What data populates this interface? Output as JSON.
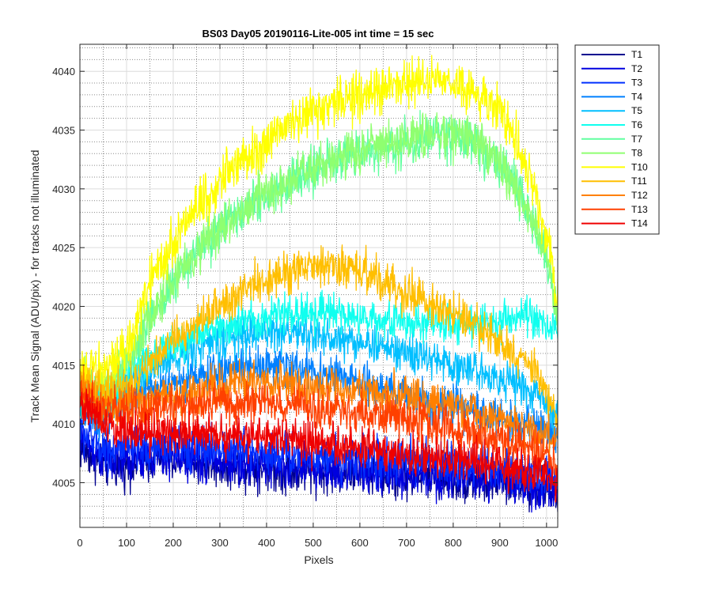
{
  "chart_data": {
    "type": "line",
    "title": "BS03 Day05 20190116-Lite-005 int time = 15 sec",
    "xlabel": "Pixels",
    "ylabel": "Track Mean Signal (ADU/pix) - for tracks not illuminated",
    "xlim": [
      0,
      1024
    ],
    "ylim": [
      4001.2,
      4042.3
    ],
    "x_ticks": [
      0,
      100,
      200,
      300,
      400,
      500,
      600,
      700,
      800,
      900,
      1000
    ],
    "y_ticks": [
      4005,
      4010,
      4015,
      4020,
      4025,
      4030,
      4035,
      4040
    ],
    "y_minor_step": 1,
    "grid": "major solid, minor dotted",
    "legend_position": "outside-top-right",
    "x": [
      0,
      50,
      100,
      150,
      200,
      250,
      300,
      350,
      400,
      450,
      500,
      550,
      600,
      650,
      700,
      750,
      800,
      850,
      900,
      950,
      1000,
      1024
    ],
    "series": [
      {
        "name": "T1",
        "color": "#00008f",
        "values": [
          4008.0,
          4006.5,
          4006.5,
          4007.0,
          4007.0,
          4006.8,
          4006.5,
          4006.5,
          4006.3,
          4006.0,
          4006.0,
          4006.0,
          4005.8,
          4005.6,
          4005.5,
          4005.5,
          4005.3,
          4005.2,
          4005.0,
          4005.0,
          4004.5,
          4004.0
        ],
        "noise": 1.2
      },
      {
        "name": "T2",
        "color": "#0000df",
        "values": [
          4009.0,
          4007.0,
          4006.8,
          4007.2,
          4007.2,
          4007.0,
          4006.8,
          4006.6,
          4006.5,
          4006.2,
          4006.2,
          4006.0,
          4006.0,
          4005.8,
          4005.7,
          4005.6,
          4005.5,
          4005.4,
          4005.2,
          4005.0,
          4004.5,
          4004.0
        ],
        "noise": 1.2
      },
      {
        "name": "T3",
        "color": "#0030ff",
        "values": [
          4009.5,
          4008.0,
          4007.8,
          4008.0,
          4008.2,
          4008.0,
          4008.0,
          4007.8,
          4007.6,
          4007.5,
          4007.4,
          4007.2,
          4007.0,
          4007.0,
          4006.8,
          4006.8,
          4006.6,
          4006.5,
          4006.3,
          4006.0,
          4005.5,
          4005.0
        ],
        "noise": 1.2
      },
      {
        "name": "T4",
        "color": "#0080ff",
        "values": [
          4011.0,
          4010.0,
          4012.5,
          4013.0,
          4013.5,
          4014.0,
          4014.5,
          4015.0,
          4015.0,
          4014.8,
          4014.5,
          4014.0,
          4013.5,
          4013.0,
          4012.5,
          4012.0,
          4011.5,
          4011.0,
          4010.5,
          4010.0,
          4009.5,
          4009.0
        ],
        "noise": 1.0
      },
      {
        "name": "T5",
        "color": "#00bfff",
        "values": [
          4012.0,
          4011.0,
          4013.5,
          4014.5,
          4015.5,
          4016.5,
          4017.0,
          4017.5,
          4017.8,
          4017.8,
          4017.5,
          4017.2,
          4017.0,
          4016.5,
          4016.0,
          4015.5,
          4015.0,
          4014.5,
          4014.0,
          4013.0,
          4012.0,
          4010.5
        ],
        "noise": 1.0
      },
      {
        "name": "T6",
        "color": "#10ffef",
        "values": [
          4012.5,
          4011.5,
          4014.5,
          4015.8,
          4016.8,
          4017.5,
          4018.2,
          4018.8,
          4019.2,
          4019.5,
          4019.5,
          4019.3,
          4019.0,
          4018.8,
          4018.6,
          4018.5,
          4018.5,
          4018.6,
          4018.8,
          4019.0,
          4018.5,
          4018.0
        ],
        "noise": 1.0
      },
      {
        "name": "T7",
        "color": "#60ff9f",
        "values": [
          4013.0,
          4012.5,
          4015.0,
          4019.0,
          4022.0,
          4024.5,
          4026.5,
          4028.0,
          4029.5,
          4030.5,
          4031.5,
          4032.5,
          4033.0,
          4033.5,
          4034.0,
          4034.5,
          4034.5,
          4034.0,
          4032.0,
          4029.0,
          4024.0,
          4019.0
        ],
        "noise": 1.2
      },
      {
        "name": "T8",
        "color": "#8fff70",
        "values": [
          4013.5,
          4013.0,
          4015.2,
          4019.2,
          4022.2,
          4024.7,
          4026.7,
          4028.2,
          4029.7,
          4030.7,
          4031.7,
          4032.7,
          4033.2,
          4033.7,
          4034.2,
          4034.7,
          4034.7,
          4034.2,
          4032.2,
          4029.2,
          4024.2,
          4019.2
        ],
        "noise": 1.2
      },
      {
        "name": "T10",
        "color": "#ffff00",
        "values": [
          4014.5,
          4014.5,
          4016.0,
          4022.0,
          4025.5,
          4028.5,
          4030.5,
          4032.5,
          4034.0,
          4035.5,
          4036.5,
          4037.5,
          4038.0,
          4038.5,
          4038.8,
          4039.0,
          4038.8,
          4038.0,
          4036.5,
          4033.0,
          4027.0,
          4020.0
        ],
        "noise": 1.3
      },
      {
        "name": "T11",
        "color": "#ffbf00",
        "values": [
          4014.0,
          4012.5,
          4013.0,
          4015.0,
          4017.0,
          4018.5,
          4020.0,
          4021.5,
          4022.5,
          4023.0,
          4023.3,
          4023.3,
          4023.0,
          4022.0,
          4021.0,
          4020.2,
          4019.5,
          4018.5,
          4017.0,
          4015.5,
          4013.0,
          4010.5
        ],
        "noise": 1.1
      },
      {
        "name": "T12",
        "color": "#ff8000",
        "values": [
          4013.0,
          4011.5,
          4011.5,
          4012.0,
          4012.5,
          4013.0,
          4013.2,
          4013.5,
          4013.5,
          4013.5,
          4013.2,
          4013.0,
          4012.8,
          4012.5,
          4012.2,
          4011.8,
          4011.5,
          4011.0,
          4010.5,
          4010.0,
          4009.2,
          4008.5
        ],
        "noise": 1.1
      },
      {
        "name": "T13",
        "color": "#ff4000",
        "values": [
          4012.5,
          4011.0,
          4011.0,
          4011.2,
          4011.5,
          4011.6,
          4011.8,
          4011.8,
          4011.8,
          4011.6,
          4011.4,
          4011.2,
          4011.0,
          4010.6,
          4010.3,
          4010.0,
          4009.5,
          4009.0,
          4008.5,
          4008.0,
          4007.2,
          4006.5
        ],
        "noise": 1.1
      },
      {
        "name": "T14",
        "color": "#ef0000",
        "values": [
          4012.0,
          4010.0,
          4009.5,
          4009.3,
          4009.2,
          4009.1,
          4009.0,
          4009.0,
          4008.8,
          4008.6,
          4008.4,
          4008.2,
          4008.0,
          4007.8,
          4007.5,
          4007.3,
          4007.0,
          4006.8,
          4006.5,
          4006.0,
          4005.5,
          4005.0
        ],
        "noise": 1.1
      }
    ]
  }
}
